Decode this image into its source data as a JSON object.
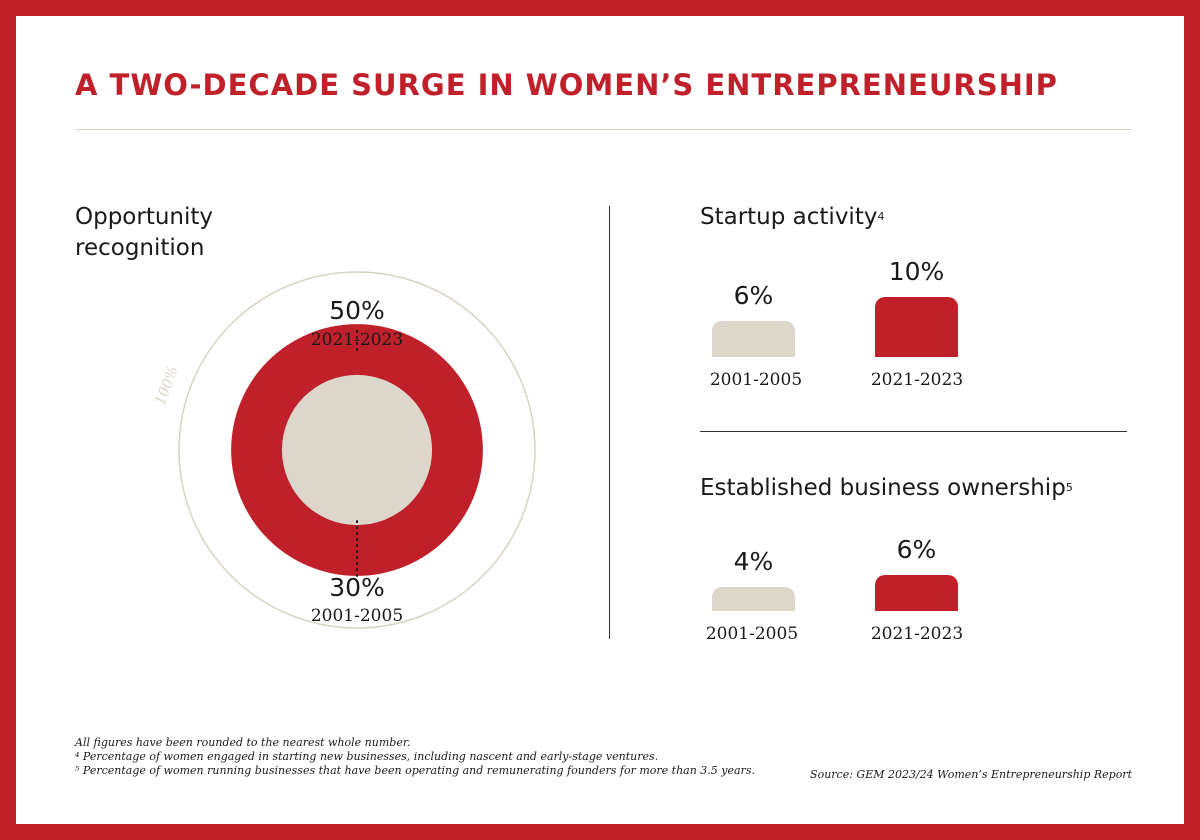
{
  "title": "A TWO-DECADE SURGE IN WOMEN’S ENTREPRENEURSHIP",
  "colors": {
    "accent": "#c0202a",
    "beige": "#dcd6cb",
    "outline": "#d8d3c4"
  },
  "chart_data": [
    {
      "type": "pie",
      "title": "Opportunity recognition",
      "title_lines": [
        "Opportunity",
        "recognition"
      ],
      "scale_label": "100%",
      "max": 100,
      "series": [
        {
          "name": "2021-2023",
          "value": 50,
          "label": "50%",
          "color": "#c0202a"
        },
        {
          "name": "2001-2005",
          "value": 30,
          "label": "30%",
          "color": "#dcd6cb"
        }
      ]
    },
    {
      "type": "bar",
      "title": "Startup activity",
      "footnote_mark": "4",
      "categories": [
        "2001-2005",
        "2021-2023"
      ],
      "values": [
        6,
        10
      ],
      "labels": [
        "6%",
        "10%"
      ],
      "colors": [
        "#dcd6cb",
        "#c0202a"
      ]
    },
    {
      "type": "bar",
      "title": "Established business ownership",
      "footnote_mark": "5",
      "categories": [
        "2001-2005",
        "2021-2023"
      ],
      "values": [
        4,
        6
      ],
      "labels": [
        "4%",
        "6%"
      ],
      "colors": [
        "#dcd6cb",
        "#c0202a"
      ]
    }
  ],
  "footnotes": [
    "All figures have been rounded to the nearest whole number.",
    "⁴ Percentage of women engaged in starting new businesses, including nascent and early-stage ventures.",
    "⁵ Percentage of women running businesses that have been operating and remunerating founders for more than 3.5 years."
  ],
  "source": "Source: GEM 2023/24 Women’s Entrepreneurship Report"
}
